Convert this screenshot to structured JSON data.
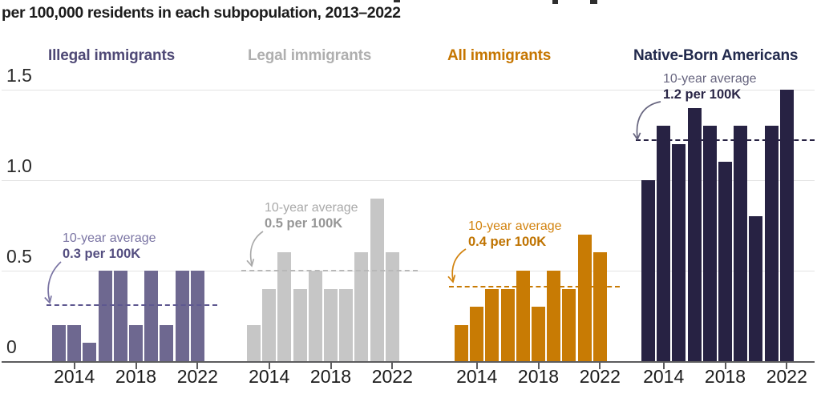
{
  "title": {
    "visible_line": "per 100,000 residents in each subpopulation, 2013–2022"
  },
  "chart_data": {
    "type": "bar",
    "title": "per 100,000 residents in each subpopulation, 2013–2022",
    "x": [
      2013,
      2014,
      2015,
      2016,
      2017,
      2018,
      2019,
      2020,
      2021,
      2022
    ],
    "x_tick_labels": [
      "2014",
      "2018",
      "2022"
    ],
    "x_tick_years": [
      2014,
      2018,
      2022
    ],
    "y_ticks": [
      {
        "label": "1.5",
        "value": 1.5
      },
      {
        "label": "1.0",
        "value": 1.0
      },
      {
        "label": "0.5",
        "value": 0.5
      },
      {
        "label": "0",
        "value": 0
      }
    ],
    "ylim": [
      0,
      1.55
    ],
    "grid": true,
    "unit": "per 100,000 residents",
    "panels": [
      {
        "label": "Illegal immigrants",
        "values": [
          0.2,
          0.2,
          0.1,
          0.5,
          0.5,
          0.2,
          0.5,
          0.2,
          0.5,
          0.5
        ],
        "average_label_line1": "10-year average",
        "average_label_line2": "0.3 per 100K",
        "average_value": 0.31,
        "bar_color": "#6E6890",
        "header_color": "#4F4976",
        "ann_color": "#7A74A3",
        "ann_bold_color": "#544E80",
        "dash_color": "#5E5890"
      },
      {
        "label": "Legal immigrants",
        "values": [
          0.2,
          0.4,
          0.6,
          0.4,
          0.5,
          0.4,
          0.4,
          0.6,
          0.9,
          0.6
        ],
        "average_label_line1": "10-year average",
        "average_label_line2": "0.5 per 100K",
        "average_value": 0.5,
        "bar_color": "#C6C6C6",
        "header_color": "#AFAFAF",
        "ann_color": "#A9A9A9",
        "ann_bold_color": "#969696",
        "dash_color": "#B8B8B8"
      },
      {
        "label": "All immigrants",
        "values": [
          0.2,
          0.3,
          0.4,
          0.4,
          0.5,
          0.3,
          0.5,
          0.4,
          0.7,
          0.6
        ],
        "average_label_line1": "10-year average",
        "average_label_line2": "0.4 per 100K",
        "average_value": 0.41,
        "bar_color": "#C87B04",
        "header_color": "#C67601",
        "ann_color": "#D2830F",
        "ann_bold_color": "#BF7300",
        "dash_color": "#C87B04"
      },
      {
        "label": "Native-Born Americans",
        "values": [
          1.0,
          1.3,
          1.2,
          1.4,
          1.3,
          1.1,
          1.3,
          0.8,
          1.3,
          1.5
        ],
        "average_label_line1": "10-year average",
        "average_label_line2": "1.2 per 100K",
        "average_value": 1.22,
        "bar_color": "#272243",
        "header_color": "#222A4D",
        "ann_color": "#67657F",
        "ann_bold_color": "#2A2647",
        "dash_color": "#272243"
      }
    ]
  }
}
